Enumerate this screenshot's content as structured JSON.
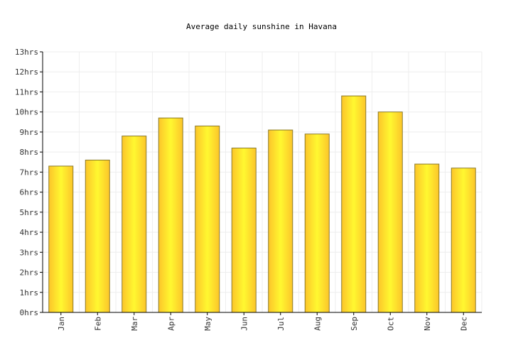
{
  "chart_data": {
    "type": "bar",
    "title": "Average daily sunshine in Havana",
    "categories": [
      "Jan",
      "Feb",
      "Mar",
      "Apr",
      "May",
      "Jun",
      "Jul",
      "Aug",
      "Sep",
      "Oct",
      "Nov",
      "Dec"
    ],
    "values": [
      7.3,
      7.6,
      8.8,
      9.7,
      9.3,
      8.2,
      9.1,
      8.9,
      10.8,
      10.0,
      7.4,
      7.2
    ],
    "ylim": [
      0,
      13
    ],
    "y_ticks": [
      "0hrs",
      "1hrs",
      "2hrs",
      "3hrs",
      "4hrs",
      "5hrs",
      "6hrs",
      "7hrs",
      "8hrs",
      "9hrs",
      "10hrs",
      "11hrs",
      "12hrs",
      "13hrs"
    ],
    "grid": true,
    "colors": {
      "bar_light": "#fff830",
      "bar_dark": "#fcc52a",
      "bar_stroke": "#8a7a2a",
      "grid": "#eeeeee"
    }
  }
}
